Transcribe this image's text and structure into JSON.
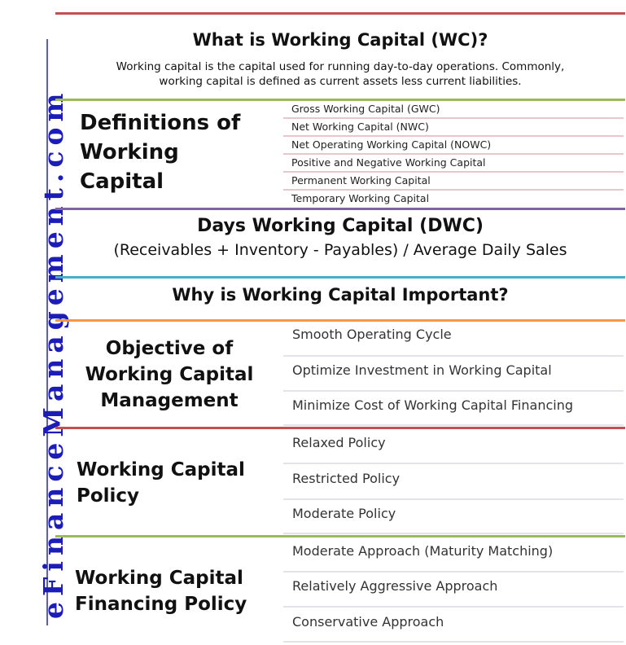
{
  "brand": "eFinanceManagement.com",
  "colors": {
    "rule_red": "#c2504e",
    "rule_green": "#9bbb59",
    "rule_purple": "#8064a2",
    "rule_blue": "#4bacc6",
    "rule_orange": "#f79646",
    "brand_blue": "#1c1cb8"
  },
  "what_is": {
    "title": "What is Working Capital (WC)?",
    "description_line1": "Working capital is the capital used for running  day-to-day operations. Commonly,",
    "description_line2": "working capital is defined as current assets less current liabilities."
  },
  "definitions": {
    "heading_line1": "Definitions of",
    "heading_line2": "Working",
    "heading_line3": "Capital",
    "items": [
      "Gross Working Capital (GWC)",
      "Net Working Capital (NWC)",
      "Net Operating Working Capital (NOWC)",
      "Positive and Negative Working Capital",
      "Permanent Working Capital",
      "Temporary Working Capital"
    ]
  },
  "dwc": {
    "title": "Days Working Capital (DWC)",
    "formula": "(Receivables + Inventory - Payables) / Average Daily Sales"
  },
  "importance": {
    "title": "Why is Working Capital Important?"
  },
  "objective": {
    "heading_line1": "Objective of",
    "heading_line2": "Working Capital",
    "heading_line3": "Management",
    "items": [
      "Smooth Operating Cycle",
      "Optimize Investment in Working Capital",
      "Minimize  Cost of Working Capital Financing"
    ]
  },
  "policy": {
    "heading_line1": "Working Capital",
    "heading_line2": "Policy",
    "items": [
      "Relaxed Policy",
      "Restricted Policy",
      "Moderate Policy"
    ]
  },
  "financing": {
    "heading_line1": "Working Capital",
    "heading_line2": "Financing Policy",
    "items": [
      "Moderate Approach (Maturity Matching)",
      "Relatively Aggressive Approach",
      "Conservative Approach"
    ]
  }
}
